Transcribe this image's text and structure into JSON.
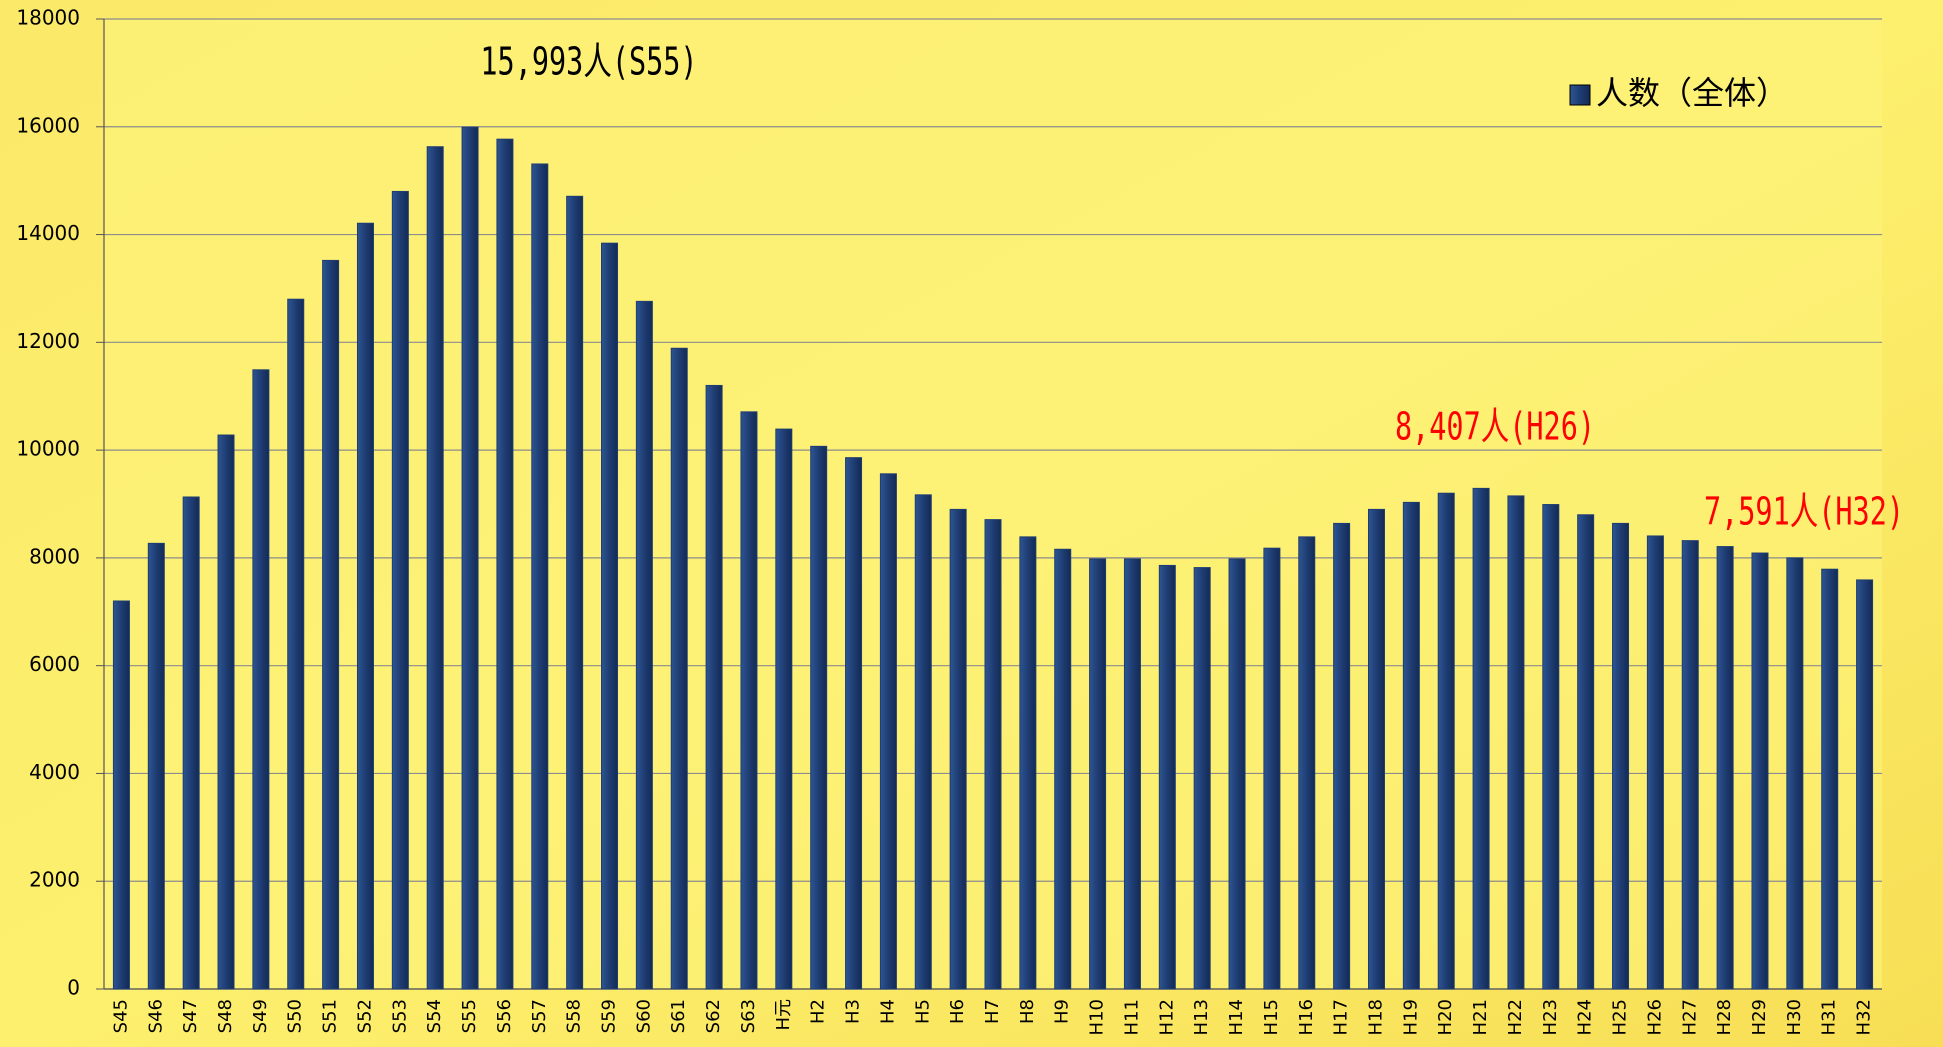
{
  "chart_data": {
    "type": "bar",
    "categories": [
      "S45",
      "S46",
      "S47",
      "S48",
      "S49",
      "S50",
      "S51",
      "S52",
      "S53",
      "S54",
      "S55",
      "S56",
      "S57",
      "S58",
      "S59",
      "S60",
      "S61",
      "S62",
      "S63",
      "H元",
      "H2",
      "H3",
      "H4",
      "H5",
      "H6",
      "H7",
      "H8",
      "H9",
      "H10",
      "H11",
      "H12",
      "H13",
      "H14",
      "H15",
      "H16",
      "H17",
      "H18",
      "H19",
      "H20",
      "H21",
      "H22",
      "H23",
      "H24",
      "H25",
      "H26",
      "H27",
      "H28",
      "H29",
      "H30",
      "H31",
      "H32"
    ],
    "series": [
      {
        "name": "人数（全体）",
        "color": "#1f3d73",
        "values": [
          7200,
          8270,
          9130,
          10280,
          11490,
          12800,
          13520,
          14210,
          14800,
          15630,
          15993,
          15770,
          15310,
          14710,
          13840,
          12760,
          11890,
          11200,
          10710,
          10390,
          10070,
          9860,
          9560,
          9170,
          8900,
          8710,
          8390,
          8160,
          7980,
          7980,
          7860,
          7820,
          7980,
          8180,
          8390,
          8640,
          8900,
          9030,
          9200,
          9290,
          9150,
          8990,
          8800,
          8640,
          8407,
          8320,
          8210,
          8090,
          8000,
          7790,
          7591
        ]
      }
    ],
    "ylim": [
      0,
      18000
    ],
    "yticks": [
      0,
      2000,
      4000,
      6000,
      8000,
      10000,
      12000,
      14000,
      16000,
      18000
    ],
    "grid": true,
    "legend": "top-right",
    "annotations": [
      {
        "text": "15,993人(S55)",
        "color": "#000000"
      },
      {
        "text": "8,407人(H26)",
        "color": "#ff0000"
      },
      {
        "text": "7,591人(H32)",
        "color": "#ff0000"
      }
    ]
  }
}
